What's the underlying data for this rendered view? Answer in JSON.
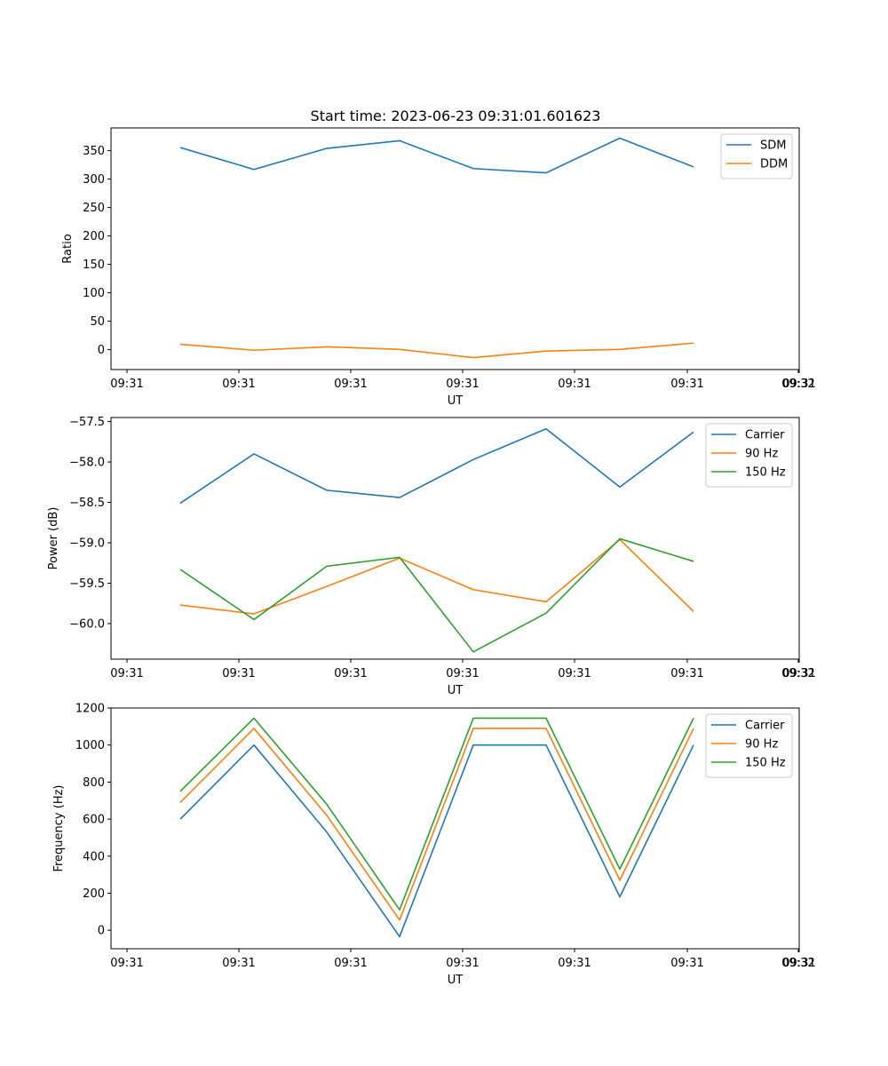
{
  "title": "Start time: 2023-06-23 09:31:01.601623",
  "colors": {
    "series1": "#1f77b4",
    "series2": "#ff7f0e",
    "series3": "#2ca02c"
  },
  "chart_data": [
    {
      "type": "line",
      "title": "Start time: 2023-06-23 09:31:01.601623",
      "xlabel": "UT",
      "ylabel": "Ratio",
      "x_tick_labels": [
        "09:31",
        "09:31",
        "09:31",
        "09:31",
        "09:31",
        "09:31",
        "09:31"
      ],
      "x_tick_label_end": "09:32",
      "y_ticks": [
        0,
        50,
        100,
        150,
        200,
        250,
        300,
        350
      ],
      "y_tick_labels": [
        "0",
        "50",
        "100",
        "150",
        "200",
        "250",
        "300",
        "350"
      ],
      "ylim": [
        -35,
        390
      ],
      "grid": false,
      "legend_position": "upper right",
      "series": [
        {
          "name": "SDM",
          "color": "#1f77b4",
          "values": [
            355.5,
            317.0,
            354.0,
            367.5,
            318.5,
            311.0,
            372.0,
            321.5
          ]
        },
        {
          "name": "DDM",
          "color": "#ff7f0e",
          "values": [
            9.5,
            -1.0,
            5.0,
            0.5,
            -14.0,
            -2.5,
            0.5,
            11.5
          ]
        }
      ]
    },
    {
      "type": "line",
      "xlabel": "UT",
      "ylabel": "Power (dB)",
      "x_tick_labels": [
        "09:31",
        "09:31",
        "09:31",
        "09:31",
        "09:31",
        "09:31",
        "09:31"
      ],
      "x_tick_label_end": "09:32",
      "y_ticks": [
        -60.0,
        -59.5,
        -59.0,
        -58.5,
        -58.0,
        -57.5
      ],
      "y_tick_labels": [
        "−60.0",
        "−59.5",
        "−59.0",
        "−58.5",
        "−58.0",
        "−57.5"
      ],
      "ylim": [
        -60.44,
        -57.45
      ],
      "grid": false,
      "legend_position": "upper right",
      "series": [
        {
          "name": "Carrier",
          "color": "#1f77b4",
          "values": [
            -58.51,
            -57.9,
            -58.35,
            -58.44,
            -57.97,
            -57.59,
            -58.31,
            -57.63
          ]
        },
        {
          "name": "90 Hz",
          "color": "#ff7f0e",
          "values": [
            -59.77,
            -59.88,
            -59.54,
            -59.19,
            -59.58,
            -59.73,
            -58.96,
            -59.85
          ]
        },
        {
          "name": "150 Hz",
          "color": "#2ca02c",
          "values": [
            -59.33,
            -59.95,
            -59.29,
            -59.18,
            -60.35,
            -59.87,
            -58.95,
            -59.23
          ]
        }
      ]
    },
    {
      "type": "line",
      "xlabel": "UT",
      "ylabel": "Frequency (Hz)",
      "x_tick_labels": [
        "09:31",
        "09:31",
        "09:31",
        "09:31",
        "09:31",
        "09:31",
        "09:31"
      ],
      "x_tick_label_end": "09:32",
      "y_ticks": [
        0,
        200,
        400,
        600,
        800,
        1000,
        1200
      ],
      "y_tick_labels": [
        "0",
        "200",
        "400",
        "600",
        "800",
        "1000",
        "1200"
      ],
      "ylim": [
        -100,
        1200
      ],
      "grid": false,
      "legend_position": "upper right",
      "series": [
        {
          "name": "Carrier",
          "color": "#1f77b4",
          "values": [
            600,
            1000,
            530,
            -35,
            1000,
            1000,
            180,
            1000
          ]
        },
        {
          "name": "90 Hz",
          "color": "#ff7f0e",
          "values": [
            690,
            1090,
            620,
            55,
            1090,
            1090,
            270,
            1090
          ]
        },
        {
          "name": "150 Hz",
          "color": "#2ca02c",
          "values": [
            750,
            1145,
            680,
            110,
            1145,
            1145,
            330,
            1145
          ]
        }
      ]
    }
  ]
}
